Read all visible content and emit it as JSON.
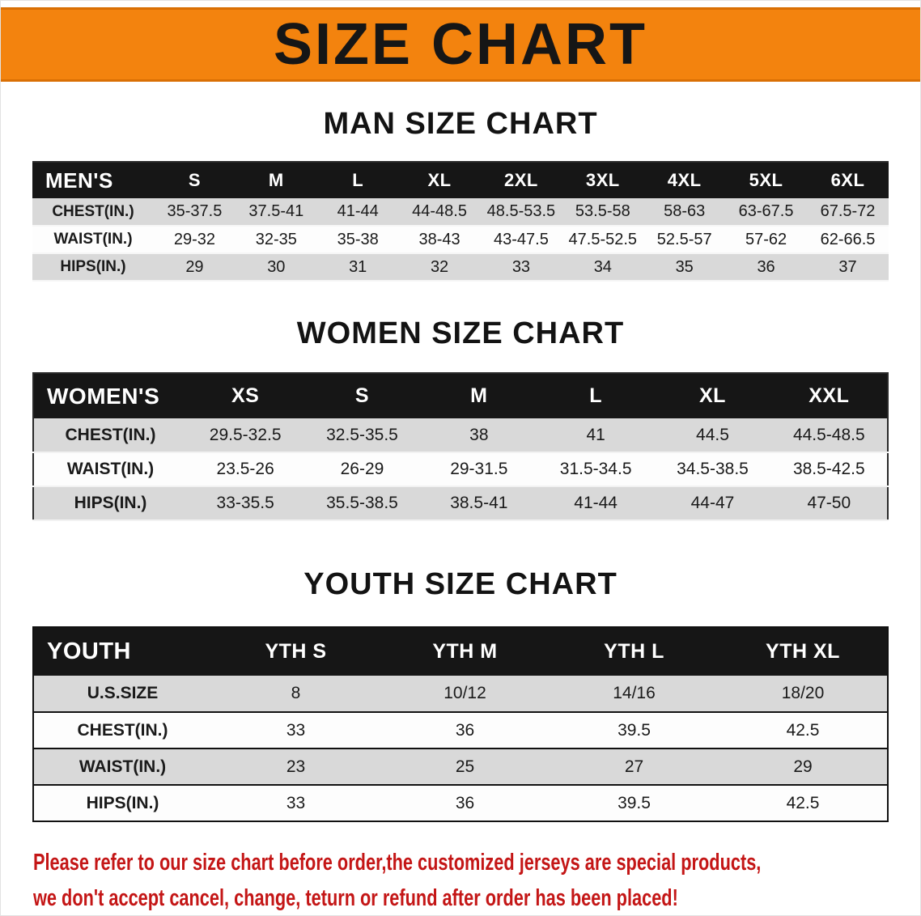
{
  "banner": {
    "title": "SIZE CHART"
  },
  "colors": {
    "banner_bg": "#f3830e",
    "banner_edge": "#d96f04",
    "header_bg": "#161616",
    "row_gray": "#d9d9d9",
    "row_white": "#fdfdfd",
    "footer_red": "#c41616"
  },
  "tables": [
    {
      "id": "men",
      "heading": "MAN SIZE CHART",
      "corner": "MEN'S",
      "columns": [
        "S",
        "M",
        "L",
        "XL",
        "2XL",
        "3XL",
        "4XL",
        "5XL",
        "6XL"
      ],
      "rows": [
        {
          "label": "CHEST(IN.)",
          "values": [
            "35-37.5",
            "37.5-41",
            "41-44",
            "44-48.5",
            "48.5-53.5",
            "53.5-58",
            "58-63",
            "63-67.5",
            "67.5-72"
          ]
        },
        {
          "label": "WAIST(IN.)",
          "values": [
            "29-32",
            "32-35",
            "35-38",
            "38-43",
            "43-47.5",
            "47.5-52.5",
            "52.5-57",
            "57-62",
            "62-66.5"
          ]
        },
        {
          "label": "HIPS(IN.)",
          "values": [
            "29",
            "30",
            "31",
            "32",
            "33",
            "34",
            "35",
            "36",
            "37"
          ]
        }
      ]
    },
    {
      "id": "women",
      "heading": "WOMEN SIZE CHART",
      "corner": "WOMEN'S",
      "columns": [
        "XS",
        "S",
        "M",
        "L",
        "XL",
        "XXL"
      ],
      "rows": [
        {
          "label": "CHEST(IN.)",
          "values": [
            "29.5-32.5",
            "32.5-35.5",
            "38",
            "41",
            "44.5",
            "44.5-48.5"
          ]
        },
        {
          "label": "WAIST(IN.)",
          "values": [
            "23.5-26",
            "26-29",
            "29-31.5",
            "31.5-34.5",
            "34.5-38.5",
            "38.5-42.5"
          ]
        },
        {
          "label": "HIPS(IN.)",
          "values": [
            "33-35.5",
            "35.5-38.5",
            "38.5-41",
            "41-44",
            "44-47",
            "47-50"
          ]
        }
      ]
    },
    {
      "id": "youth",
      "heading": "YOUTH SIZE CHART",
      "corner": "YOUTH",
      "columns": [
        "YTH S",
        "YTH M",
        "YTH L",
        "YTH XL"
      ],
      "rows": [
        {
          "label": "U.S.SIZE",
          "values": [
            "8",
            "10/12",
            "14/16",
            "18/20"
          ]
        },
        {
          "label": "CHEST(IN.)",
          "values": [
            "33",
            "36",
            "39.5",
            "42.5"
          ]
        },
        {
          "label": "WAIST(IN.)",
          "values": [
            "23",
            "25",
            "27",
            "29"
          ]
        },
        {
          "label": "HIPS(IN.)",
          "values": [
            "33",
            "36",
            "39.5",
            "42.5"
          ]
        }
      ]
    }
  ],
  "footer": {
    "line1": "Please refer to our size chart before order,the customized jerseys are special products,",
    "line2": "we don't accept cancel, change, teturn or refund after order has been placed!"
  }
}
